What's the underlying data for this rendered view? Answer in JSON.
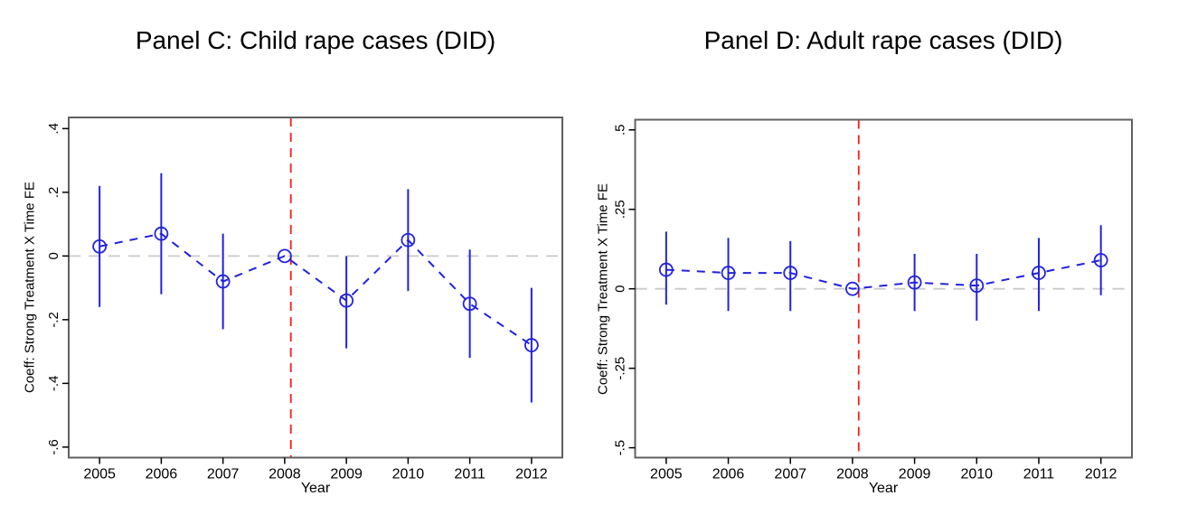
{
  "figure": {
    "background": "#ffffff"
  },
  "colors": {
    "series_blue": "#2222e0",
    "reference_line_red": "#fe1a1a",
    "zero_line_gray": "#c9c9c9",
    "frame_gray": "#606060",
    "text_black": "#000000"
  },
  "chart_data": [
    {
      "type": "line",
      "subtype": "coefficient-errorbar-plot",
      "title": "Panel C: Child rape cases (DID)",
      "xlabel": "Year",
      "ylabel": "Coeff: Strong Treatment X Time FE",
      "legend": "none",
      "grid": false,
      "marker": "hollow-circle",
      "line_style": "dashed",
      "x": [
        2005,
        2006,
        2007,
        2008,
        2009,
        2010,
        2011,
        2012
      ],
      "xtick_labels": [
        "2005",
        "2006",
        "2007",
        "2008",
        "2009",
        "2010",
        "2011",
        "2012"
      ],
      "series": [
        {
          "name": "Strong Treatment X Time FE coefficient",
          "estimates": [
            0.03,
            0.07,
            -0.08,
            0.0,
            -0.14,
            0.05,
            -0.15,
            -0.28
          ],
          "ci_low": [
            -0.16,
            -0.12,
            -0.23,
            null,
            -0.29,
            -0.11,
            -0.32,
            -0.46
          ],
          "ci_high": [
            0.22,
            0.26,
            0.07,
            null,
            0.0,
            0.21,
            0.02,
            -0.1
          ]
        }
      ],
      "reference_year": 2008,
      "vline_x": 2008.1,
      "hline_y": 0,
      "xlim": [
        2004.5,
        2012.5
      ],
      "ylim": [
        -0.633,
        0.435
      ],
      "yticks": [
        0.4,
        0.2,
        0,
        -0.2,
        -0.4,
        -0.6
      ],
      "ytick_labels": [
        ".4",
        ".2",
        "0",
        "-.2",
        "-.4",
        "-.6"
      ]
    },
    {
      "type": "line",
      "subtype": "coefficient-errorbar-plot",
      "title": "Panel D: Adult rape cases (DID)",
      "xlabel": "Year",
      "ylabel": "Coeff: Strong Treatment X Time FE",
      "legend": "none",
      "grid": false,
      "marker": "hollow-circle",
      "line_style": "dashed",
      "x": [
        2005,
        2006,
        2007,
        2008,
        2009,
        2010,
        2011,
        2012
      ],
      "xtick_labels": [
        "2005",
        "2006",
        "2007",
        "2008",
        "2009",
        "2010",
        "2011",
        "2012"
      ],
      "series": [
        {
          "name": "Strong Treatment X Time FE coefficient",
          "estimates": [
            0.06,
            0.05,
            0.05,
            0.0,
            0.02,
            0.01,
            0.05,
            0.09
          ],
          "ci_low": [
            -0.05,
            -0.07,
            -0.07,
            null,
            -0.07,
            -0.1,
            -0.07,
            -0.02
          ],
          "ci_high": [
            0.18,
            0.16,
            0.15,
            null,
            0.11,
            0.11,
            0.16,
            0.2
          ]
        }
      ],
      "reference_year": 2008,
      "vline_x": 2008.1,
      "hline_y": 0,
      "xlim": [
        2004.5,
        2012.5
      ],
      "ylim": [
        -0.531,
        0.532
      ],
      "yticks": [
        0.5,
        0.25,
        0,
        -0.25,
        -0.5
      ],
      "ytick_labels": [
        ".5",
        ".25",
        "0",
        "-.25",
        "-.5"
      ]
    }
  ]
}
